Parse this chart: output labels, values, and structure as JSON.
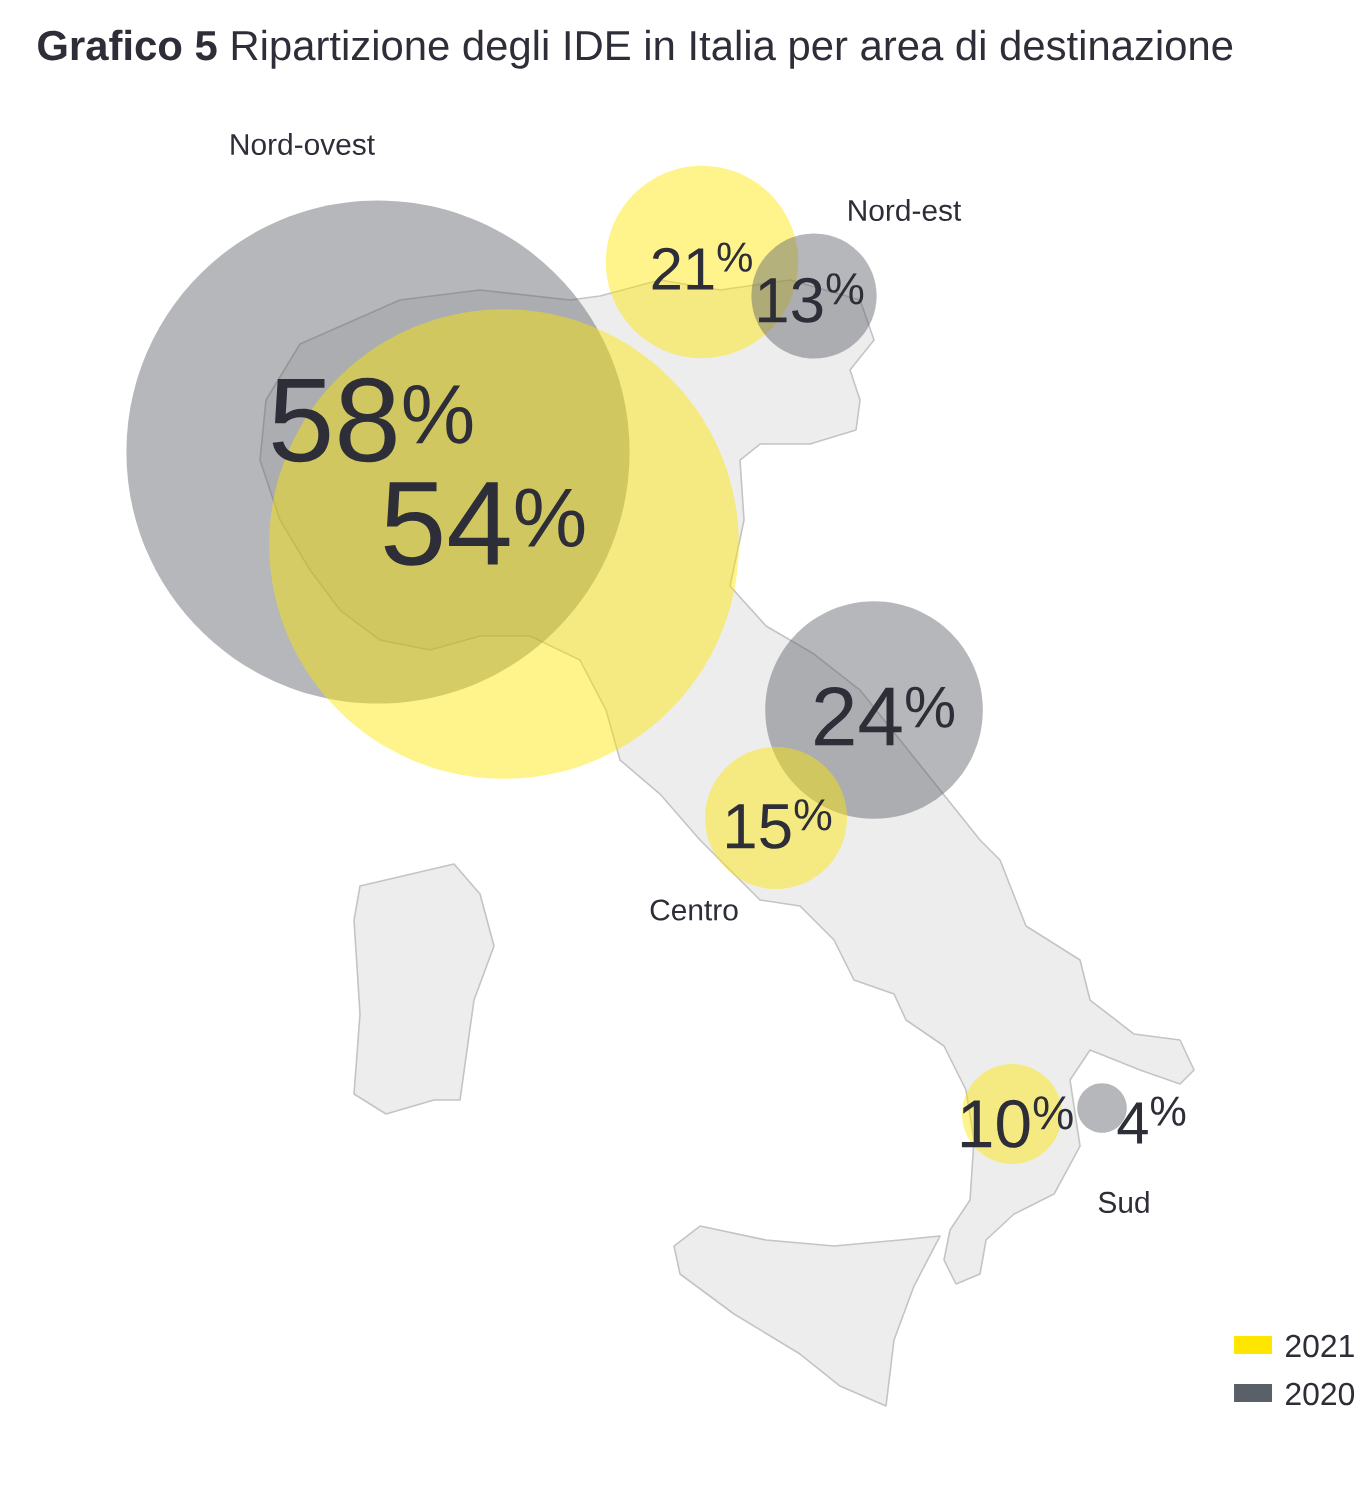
{
  "chart_data": {
    "type": "other",
    "title": "**Grafico 5** Ripartizione degli IDE in Italia per area di destinazione",
    "categories": [
      "Nord-ovest",
      "Nord-est",
      "Centro",
      "Sud"
    ],
    "series": [
      {
        "name": "2021",
        "color": "#ffe600",
        "values": [
          54,
          21,
          15,
          10
        ],
        "value_labels": [
          "54$^{%}$",
          "21$^{%}$",
          "15$^{%}$",
          "10$^{%}$"
        ]
      },
      {
        "name": "2020",
        "color": "#5a6068",
        "values": [
          58,
          13,
          24,
          4
        ],
        "value_labels": [
          "58$^{%}$",
          "13$^{%}$",
          "24$^{%}$",
          "4$^{%}$"
        ]
      }
    ],
    "legend": "bottom right"
  }
}
